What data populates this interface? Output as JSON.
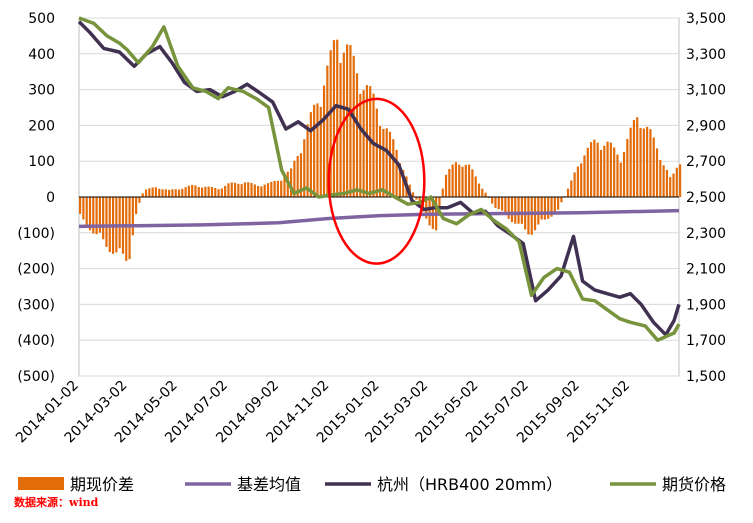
{
  "source_note": "数据来源：wind",
  "colors": {
    "basis": "#e36c09",
    "mean": "#8064a2",
    "spot": "#403152",
    "futures": "#77933c",
    "ellipse": "#ff0000",
    "grid": "#d9d9d9"
  },
  "chart_data": {
    "type": "bar+line",
    "left_axis": {
      "ylim": [
        -500,
        500
      ],
      "ticks": [
        -500,
        -400,
        -300,
        -200,
        -100,
        0,
        100,
        200,
        300,
        400,
        500
      ],
      "tick_labels": [
        "(500)",
        "(400)",
        "(300)",
        "(200)",
        "(100)",
        "0",
        "100",
        "200",
        "300",
        "400",
        "500"
      ]
    },
    "right_axis": {
      "ylim": [
        1500,
        3500
      ],
      "ticks": [
        1500,
        1700,
        1900,
        2100,
        2300,
        2500,
        2700,
        2900,
        3100,
        3300,
        3500
      ],
      "tick_labels": [
        "1,500",
        "1,700",
        "1,900",
        "2,100",
        "2,300",
        "2,500",
        "2,700",
        "2,900",
        "3,100",
        "3,300",
        "3,500"
      ]
    },
    "x_axis": {
      "range": [
        "2014-01-02",
        "2015-12-31"
      ],
      "tick_labels": [
        "2014-01-02",
        "2014-03-02",
        "2014-05-02",
        "2014-07-02",
        "2014-09-02",
        "2014-11-02",
        "2015-01-02",
        "2015-03-02",
        "2015-05-02",
        "2015-07-02",
        "2015-09-02",
        "2015-11-02"
      ]
    },
    "series": [
      {
        "name": "期现价差",
        "type": "bar",
        "axis": "left",
        "color": "#e36c09",
        "points": [
          [
            "2014-01-02",
            -60
          ],
          [
            "2014-01-20",
            -110
          ],
          [
            "2014-02-05",
            -150
          ],
          [
            "2014-02-20",
            -180
          ],
          [
            "2014-03-02",
            -190
          ],
          [
            "2014-03-10",
            -60
          ],
          [
            "2014-03-20",
            20
          ],
          [
            "2014-04-05",
            30
          ],
          [
            "2014-04-20",
            20
          ],
          [
            "2014-05-02",
            25
          ],
          [
            "2014-05-20",
            35
          ],
          [
            "2014-06-05",
            30
          ],
          [
            "2014-06-20",
            25
          ],
          [
            "2014-07-02",
            40
          ],
          [
            "2014-07-20",
            45
          ],
          [
            "2014-08-05",
            35
          ],
          [
            "2014-08-20",
            40
          ],
          [
            "2014-09-02",
            55
          ],
          [
            "2014-09-15",
            80
          ],
          [
            "2014-10-01",
            180
          ],
          [
            "2014-10-15",
            280
          ],
          [
            "2014-11-01",
            400
          ],
          [
            "2014-11-10",
            490
          ],
          [
            "2014-11-25",
            430
          ],
          [
            "2014-12-10",
            350
          ],
          [
            "2014-12-25",
            290
          ],
          [
            "2015-01-05",
            220
          ],
          [
            "2015-01-20",
            150
          ],
          [
            "2015-02-05",
            40
          ],
          [
            "2015-02-20",
            -40
          ],
          [
            "2015-03-02",
            -80
          ],
          [
            "2015-03-10",
            -100
          ],
          [
            "2015-03-20",
            60
          ],
          [
            "2015-04-05",
            110
          ],
          [
            "2015-04-20",
            90
          ],
          [
            "2015-05-02",
            40
          ],
          [
            "2015-05-20",
            -30
          ],
          [
            "2015-06-05",
            -60
          ],
          [
            "2015-06-20",
            -90
          ],
          [
            "2015-07-02",
            -110
          ],
          [
            "2015-07-20",
            -70
          ],
          [
            "2015-08-05",
            -40
          ],
          [
            "2015-08-20",
            40
          ],
          [
            "2015-09-02",
            120
          ],
          [
            "2015-09-20",
            170
          ],
          [
            "2015-10-05",
            160
          ],
          [
            "2015-10-20",
            120
          ],
          [
            "2015-11-02",
            200
          ],
          [
            "2015-11-10",
            250
          ],
          [
            "2015-11-25",
            190
          ],
          [
            "2015-12-10",
            110
          ],
          [
            "2015-12-20",
            50
          ],
          [
            "2015-12-31",
            110
          ]
        ]
      },
      {
        "name": "基差均值",
        "type": "line",
        "axis": "left",
        "color": "#8064a2",
        "points": [
          [
            "2014-01-02",
            -82
          ],
          [
            "2014-06-01",
            -78
          ],
          [
            "2014-09-01",
            -72
          ],
          [
            "2014-11-01",
            -60
          ],
          [
            "2015-01-02",
            -52
          ],
          [
            "2015-03-01",
            -48
          ],
          [
            "2015-06-01",
            -46
          ],
          [
            "2015-09-01",
            -44
          ],
          [
            "2015-12-31",
            -38
          ]
        ]
      },
      {
        "name": "杭州（HRB400 20mm）",
        "type": "line",
        "axis": "right",
        "color": "#403152",
        "points": [
          [
            "2014-01-02",
            3480
          ],
          [
            "2014-01-15",
            3420
          ],
          [
            "2014-02-01",
            3330
          ],
          [
            "2014-02-20",
            3310
          ],
          [
            "2014-03-10",
            3230
          ],
          [
            "2014-03-25",
            3300
          ],
          [
            "2014-04-10",
            3340
          ],
          [
            "2014-04-25",
            3250
          ],
          [
            "2014-05-10",
            3140
          ],
          [
            "2014-05-25",
            3090
          ],
          [
            "2014-06-10",
            3100
          ],
          [
            "2014-06-25",
            3060
          ],
          [
            "2014-07-10",
            3090
          ],
          [
            "2014-07-25",
            3130
          ],
          [
            "2014-08-10",
            3080
          ],
          [
            "2014-08-25",
            3030
          ],
          [
            "2014-09-10",
            2880
          ],
          [
            "2014-09-25",
            2920
          ],
          [
            "2014-10-10",
            2870
          ],
          [
            "2014-10-25",
            2930
          ],
          [
            "2014-11-10",
            3010
          ],
          [
            "2014-11-25",
            2990
          ],
          [
            "2014-12-10",
            2880
          ],
          [
            "2014-12-25",
            2800
          ],
          [
            "2015-01-10",
            2760
          ],
          [
            "2015-01-25",
            2680
          ],
          [
            "2015-02-10",
            2480
          ],
          [
            "2015-02-25",
            2430
          ],
          [
            "2015-03-10",
            2440
          ],
          [
            "2015-03-25",
            2440
          ],
          [
            "2015-04-10",
            2470
          ],
          [
            "2015-04-25",
            2410
          ],
          [
            "2015-05-10",
            2420
          ],
          [
            "2015-05-25",
            2340
          ],
          [
            "2015-06-10",
            2290
          ],
          [
            "2015-06-25",
            2240
          ],
          [
            "2015-07-10",
            1920
          ],
          [
            "2015-07-25",
            1980
          ],
          [
            "2015-08-10",
            2060
          ],
          [
            "2015-08-25",
            2280
          ],
          [
            "2015-09-05",
            2030
          ],
          [
            "2015-09-20",
            1980
          ],
          [
            "2015-10-05",
            1960
          ],
          [
            "2015-10-20",
            1940
          ],
          [
            "2015-11-02",
            1960
          ],
          [
            "2015-11-15",
            1900
          ],
          [
            "2015-11-30",
            1800
          ],
          [
            "2015-12-15",
            1730
          ],
          [
            "2015-12-25",
            1810
          ],
          [
            "2015-12-31",
            1900
          ]
        ]
      },
      {
        "name": "期货价格",
        "type": "line",
        "axis": "right",
        "color": "#77933c",
        "points": [
          [
            "2014-01-02",
            3500
          ],
          [
            "2014-01-20",
            3470
          ],
          [
            "2014-02-05",
            3400
          ],
          [
            "2014-02-20",
            3360
          ],
          [
            "2014-03-02",
            3320
          ],
          [
            "2014-03-15",
            3250
          ],
          [
            "2014-04-01",
            3340
          ],
          [
            "2014-04-15",
            3450
          ],
          [
            "2014-05-02",
            3230
          ],
          [
            "2014-05-20",
            3110
          ],
          [
            "2014-06-05",
            3090
          ],
          [
            "2014-06-20",
            3050
          ],
          [
            "2014-07-02",
            3110
          ],
          [
            "2014-07-20",
            3090
          ],
          [
            "2014-08-05",
            3050
          ],
          [
            "2014-08-20",
            3000
          ],
          [
            "2014-09-05",
            2650
          ],
          [
            "2014-09-20",
            2520
          ],
          [
            "2014-10-05",
            2550
          ],
          [
            "2014-10-20",
            2500
          ],
          [
            "2014-11-02",
            2510
          ],
          [
            "2014-11-20",
            2520
          ],
          [
            "2014-12-05",
            2540
          ],
          [
            "2014-12-20",
            2520
          ],
          [
            "2015-01-05",
            2540
          ],
          [
            "2015-01-20",
            2500
          ],
          [
            "2015-02-05",
            2460
          ],
          [
            "2015-02-20",
            2470
          ],
          [
            "2015-03-05",
            2500
          ],
          [
            "2015-03-20",
            2380
          ],
          [
            "2015-04-05",
            2350
          ],
          [
            "2015-04-20",
            2400
          ],
          [
            "2015-05-05",
            2430
          ],
          [
            "2015-05-20",
            2370
          ],
          [
            "2015-06-05",
            2320
          ],
          [
            "2015-06-20",
            2250
          ],
          [
            "2015-07-05",
            1950
          ],
          [
            "2015-07-20",
            2050
          ],
          [
            "2015-08-05",
            2100
          ],
          [
            "2015-08-20",
            2080
          ],
          [
            "2015-09-05",
            1930
          ],
          [
            "2015-09-20",
            1920
          ],
          [
            "2015-10-05",
            1870
          ],
          [
            "2015-10-20",
            1820
          ],
          [
            "2015-11-02",
            1800
          ],
          [
            "2015-11-20",
            1780
          ],
          [
            "2015-12-05",
            1700
          ],
          [
            "2015-12-15",
            1720
          ],
          [
            "2015-12-25",
            1740
          ],
          [
            "2015-12-31",
            1790
          ]
        ]
      }
    ],
    "legend": {
      "placement": "bottom",
      "items": [
        "期现价差",
        "基差均值",
        "杭州（HRB400 20mm）",
        "期货价格"
      ]
    },
    "annotations": [
      {
        "type": "ellipse",
        "color": "#ff0000",
        "from": "2014-11-01",
        "to": "2015-02-25",
        "y_left_center": 44,
        "y_left_halfheight": 230
      }
    ],
    "grid": true
  }
}
